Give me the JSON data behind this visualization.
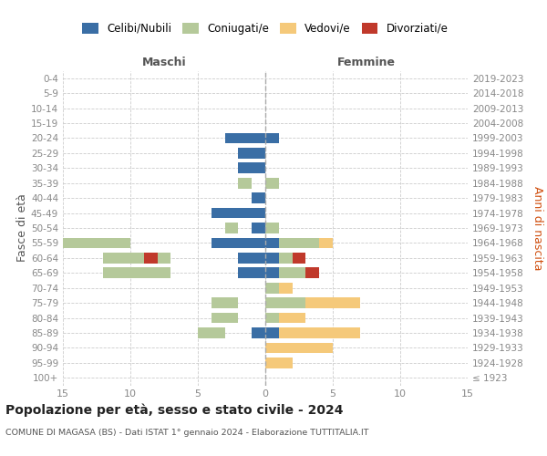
{
  "age_groups": [
    "100+",
    "95-99",
    "90-94",
    "85-89",
    "80-84",
    "75-79",
    "70-74",
    "65-69",
    "60-64",
    "55-59",
    "50-54",
    "45-49",
    "40-44",
    "35-39",
    "30-34",
    "25-29",
    "20-24",
    "15-19",
    "10-14",
    "5-9",
    "0-4"
  ],
  "birth_years": [
    "≤ 1923",
    "1924-1928",
    "1929-1933",
    "1934-1938",
    "1939-1943",
    "1944-1948",
    "1949-1953",
    "1954-1958",
    "1959-1963",
    "1964-1968",
    "1969-1973",
    "1974-1978",
    "1979-1983",
    "1984-1988",
    "1989-1993",
    "1994-1998",
    "1999-2003",
    "2004-2008",
    "2009-2013",
    "2014-2018",
    "2019-2023"
  ],
  "colors": {
    "celibi": "#3a6ea5",
    "coniugati": "#b5c99a",
    "vedovi": "#f5c97a",
    "divorziati": "#c0392b"
  },
  "maschi": {
    "celibi": [
      0,
      0,
      0,
      1,
      0,
      0,
      0,
      2,
      2,
      4,
      1,
      4,
      1,
      0,
      2,
      2,
      3,
      0,
      0,
      0,
      0
    ],
    "coniugati": [
      0,
      0,
      0,
      2,
      2,
      2,
      0,
      5,
      5,
      6,
      1,
      0,
      0,
      1,
      0,
      0,
      0,
      0,
      0,
      0,
      0
    ],
    "vedovi": [
      0,
      0,
      0,
      0,
      0,
      0,
      0,
      0,
      0,
      0,
      0,
      0,
      0,
      0,
      0,
      0,
      0,
      0,
      0,
      0,
      0
    ],
    "divorziati": [
      0,
      0,
      0,
      0,
      0,
      0,
      0,
      0,
      1,
      0,
      0,
      0,
      0,
      0,
      0,
      0,
      0,
      0,
      0,
      0,
      0
    ]
  },
  "femmine": {
    "celibi": [
      0,
      0,
      0,
      1,
      0,
      0,
      0,
      1,
      1,
      1,
      0,
      0,
      0,
      0,
      0,
      0,
      1,
      0,
      0,
      0,
      0
    ],
    "coniugati": [
      0,
      0,
      0,
      0,
      1,
      3,
      1,
      2,
      1,
      3,
      1,
      0,
      0,
      1,
      0,
      0,
      0,
      0,
      0,
      0,
      0
    ],
    "vedovi": [
      0,
      2,
      5,
      6,
      2,
      4,
      1,
      0,
      0,
      1,
      0,
      0,
      0,
      0,
      0,
      0,
      0,
      0,
      0,
      0,
      0
    ],
    "divorziati": [
      0,
      0,
      0,
      0,
      0,
      0,
      0,
      1,
      1,
      0,
      0,
      0,
      0,
      0,
      0,
      0,
      0,
      0,
      0,
      0,
      0
    ]
  },
  "xlim": 15,
  "title": "Popolazione per età, sesso e stato civile - 2024",
  "subtitle": "COMUNE DI MAGASA (BS) - Dati ISTAT 1° gennaio 2024 - Elaborazione TUTTITALIA.IT",
  "ylabel_left": "Fasce di età",
  "ylabel_right": "Anni di nascita",
  "xlabel_maschi": "Maschi",
  "xlabel_femmine": "Femmine",
  "legend_labels": [
    "Celibi/Nubili",
    "Coniugati/e",
    "Vedovi/e",
    "Divorziati/e"
  ],
  "bg_color": "#ffffff",
  "grid_color": "#cccccc",
  "tick_color": "#888888",
  "text_color": "#555555",
  "title_color": "#222222"
}
